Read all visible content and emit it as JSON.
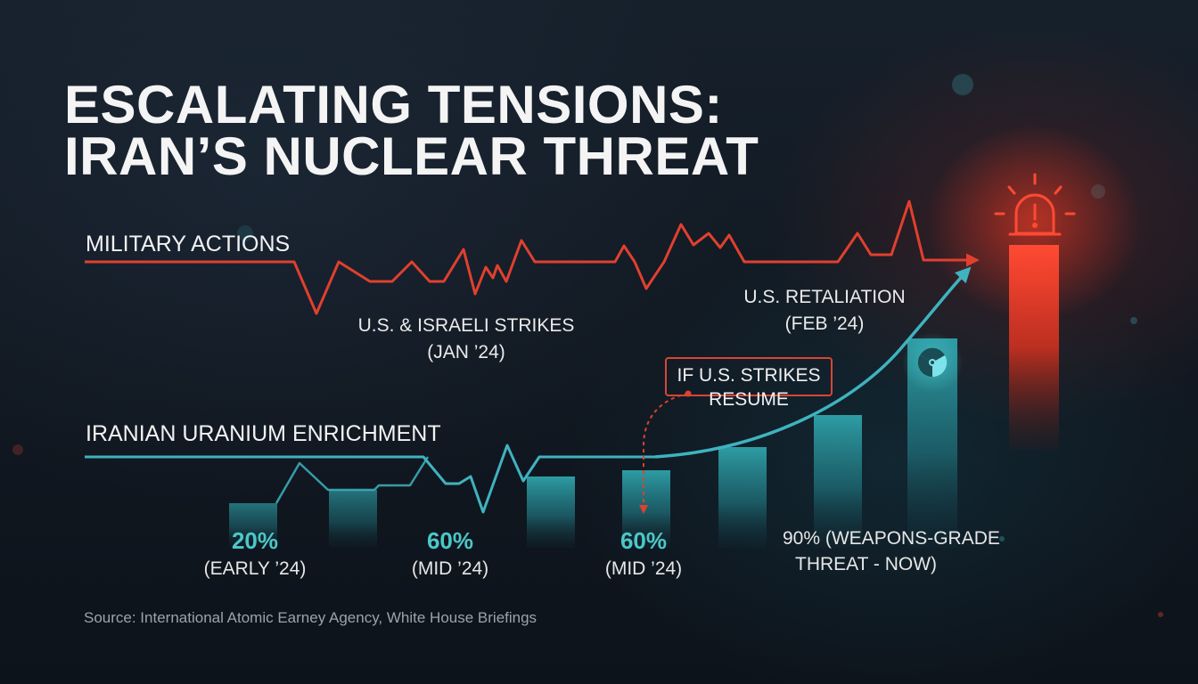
{
  "title_line1": "ESCALATING TENSIONS:",
  "title_line2": "IRAN’S NUCLEAR THREAT",
  "source": "Source: International Atomic Earney Agency, White House Briefings",
  "callout": {
    "line1": "IF U.S. STRIKES",
    "line2": "RESUME"
  },
  "colors": {
    "military": "#e0402e",
    "enrichment": "#3fb3bf",
    "callout": "#d94535",
    "background": "#131a24"
  },
  "icons": [
    "warning-alarm-icon",
    "radiation-icon"
  ],
  "chart_data": {
    "type": "line",
    "series": [
      {
        "name": "MILITARY ACTIONS",
        "color": "#e0402e"
      },
      {
        "name": "IRANIAN URANIUM ENRICHMENT",
        "color": "#3fb3bf"
      }
    ],
    "events": [
      {
        "line1": "U.S. & ISRAELI STRIKES",
        "line2": "(JAN ’24)"
      },
      {
        "line1": "U.S. RETALIATION",
        "line2": "(FEB ’24)"
      }
    ],
    "enrichment_levels": [
      {
        "value": "20%",
        "period": "(EARLY ’24)"
      },
      {
        "value": "60%",
        "period": "(MID ’24)"
      },
      {
        "value": "60%",
        "period": "(MID ’24)"
      },
      {
        "value": "90% (WEAPONS-GRADE",
        "period": "THREAT - NOW)"
      }
    ]
  }
}
